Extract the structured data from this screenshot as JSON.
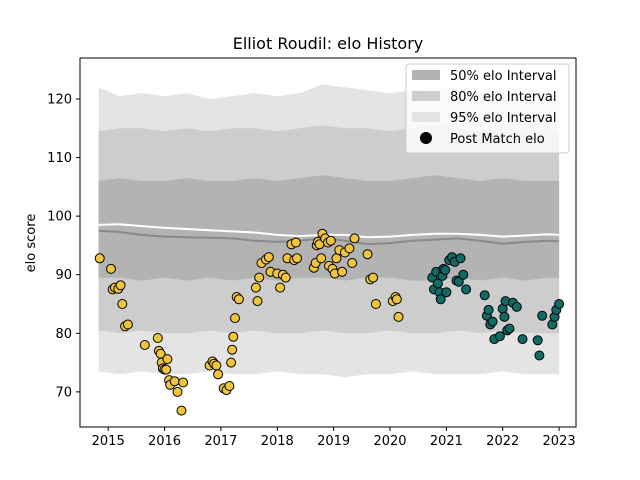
{
  "chart_data": {
    "type": "scatter",
    "title": "Elliot Roudil: elo History",
    "xlabel": "",
    "ylabel": "elo score",
    "xlim": [
      2014.5,
      2023.3
    ],
    "ylim": [
      64,
      127
    ],
    "x_ticks": [
      2015,
      2016,
      2017,
      2018,
      2019,
      2020,
      2021,
      2022,
      2023
    ],
    "y_ticks": [
      70,
      80,
      90,
      100,
      110,
      120
    ],
    "grid": false,
    "legend": {
      "placement": "top-right",
      "entries": [
        "50% elo Interval",
        "80% elo Interval",
        "95% elo Interval",
        "Post Match elo"
      ]
    },
    "colors": {
      "band_95": "#e4e4e4",
      "band_80": "#cdcdcd",
      "band_50": "#b3b3b3",
      "median_line": "#8a8a8a",
      "mean_line": "#ffffff",
      "point_yellow": "#f0c53c",
      "point_teal": "#0f6b66",
      "point_edge": "#000000"
    },
    "bands": {
      "x": [
        2014.83,
        2015.2,
        2015.6,
        2016.0,
        2016.4,
        2016.8,
        2017.2,
        2017.6,
        2018.0,
        2018.4,
        2018.8,
        2019.2,
        2019.6,
        2020.0,
        2020.4,
        2020.8,
        2021.2,
        2021.6,
        2022.0,
        2022.4,
        2022.8,
        2023.0
      ],
      "p95_upper": [
        122.0,
        120.5,
        121.0,
        120.5,
        121.0,
        120.0,
        120.5,
        121.0,
        120.5,
        121.0,
        122.5,
        122.0,
        121.5,
        121.0,
        121.5,
        122.0,
        122.0,
        121.0,
        121.5,
        120.5,
        121.0,
        120.5
      ],
      "p80_upper": [
        114.5,
        115.0,
        115.0,
        114.5,
        115.0,
        114.5,
        115.0,
        115.0,
        114.5,
        115.0,
        115.5,
        115.0,
        115.0,
        114.5,
        115.0,
        115.5,
        115.0,
        114.5,
        115.0,
        114.5,
        115.0,
        114.5
      ],
      "p50_upper": [
        106.0,
        106.5,
        106.0,
        106.0,
        106.5,
        106.0,
        106.0,
        106.5,
        106.0,
        106.5,
        107.0,
        106.5,
        106.0,
        106.0,
        106.5,
        107.0,
        106.5,
        106.0,
        106.5,
        106.0,
        106.0,
        106.0
      ],
      "p50_lower": [
        89.5,
        89.5,
        89.0,
        89.5,
        89.0,
        89.5,
        89.0,
        89.5,
        89.0,
        89.5,
        89.5,
        89.0,
        89.5,
        89.5,
        89.0,
        89.0,
        89.5,
        89.0,
        89.5,
        89.0,
        89.5,
        89.5
      ],
      "p80_lower": [
        80.5,
        80.0,
        80.5,
        80.0,
        80.0,
        80.5,
        80.0,
        80.5,
        80.0,
        80.0,
        80.5,
        80.0,
        80.0,
        80.5,
        80.0,
        80.0,
        80.5,
        80.0,
        80.5,
        80.0,
        80.0,
        80.0
      ],
      "p95_lower": [
        73.5,
        73.0,
        73.5,
        73.0,
        73.0,
        73.5,
        73.0,
        73.0,
        73.5,
        73.0,
        73.0,
        72.5,
        73.0,
        73.0,
        73.5,
        73.0,
        73.0,
        73.0,
        73.5,
        73.0,
        73.0,
        73.0
      ],
      "median": [
        97.5,
        97.3,
        96.8,
        96.5,
        96.4,
        96.3,
        96.2,
        95.8,
        95.6,
        95.8,
        96.2,
        95.8,
        95.2,
        95.4,
        95.8,
        96.0,
        96.2,
        95.8,
        95.3,
        95.6,
        95.8,
        95.7
      ],
      "mean": [
        98.5,
        98.6,
        98.3,
        98.0,
        97.8,
        97.6,
        97.4,
        97.2,
        96.8,
        96.6,
        96.8,
        96.8,
        96.4,
        96.5,
        96.8,
        97.0,
        97.0,
        96.8,
        96.5,
        96.7,
        96.9,
        96.8
      ]
    },
    "points_yellow": [
      [
        2014.85,
        92.8
      ],
      [
        2015.05,
        91.0
      ],
      [
        2015.08,
        87.5
      ],
      [
        2015.12,
        87.8
      ],
      [
        2015.18,
        87.6
      ],
      [
        2015.22,
        88.2
      ],
      [
        2015.25,
        85.0
      ],
      [
        2015.3,
        81.2
      ],
      [
        2015.35,
        81.5
      ],
      [
        2015.65,
        78.0
      ],
      [
        2015.88,
        79.2
      ],
      [
        2015.9,
        77.0
      ],
      [
        2015.93,
        76.5
      ],
      [
        2015.95,
        75.0
      ],
      [
        2015.97,
        74.0
      ],
      [
        2016.0,
        73.8
      ],
      [
        2016.03,
        73.8
      ],
      [
        2016.05,
        75.6
      ],
      [
        2016.08,
        72.0
      ],
      [
        2016.1,
        71.2
      ],
      [
        2016.18,
        71.8
      ],
      [
        2016.23,
        70.0
      ],
      [
        2016.3,
        66.8
      ],
      [
        2016.33,
        71.6
      ],
      [
        2016.8,
        74.5
      ],
      [
        2016.85,
        75.2
      ],
      [
        2016.88,
        74.8
      ],
      [
        2016.92,
        74.5
      ],
      [
        2016.95,
        73.0
      ],
      [
        2017.05,
        70.6
      ],
      [
        2017.1,
        70.3
      ],
      [
        2017.15,
        71.0
      ],
      [
        2017.18,
        75.0
      ],
      [
        2017.2,
        77.2
      ],
      [
        2017.22,
        79.4
      ],
      [
        2017.25,
        82.6
      ],
      [
        2017.28,
        86.2
      ],
      [
        2017.32,
        85.8
      ],
      [
        2017.62,
        87.8
      ],
      [
        2017.65,
        85.5
      ],
      [
        2017.68,
        89.5
      ],
      [
        2017.72,
        92.0
      ],
      [
        2017.8,
        92.6
      ],
      [
        2017.85,
        93.0
      ],
      [
        2017.88,
        90.5
      ],
      [
        2018.0,
        90.2
      ],
      [
        2018.05,
        87.8
      ],
      [
        2018.1,
        90.0
      ],
      [
        2018.15,
        89.5
      ],
      [
        2018.18,
        92.8
      ],
      [
        2018.25,
        95.2
      ],
      [
        2018.3,
        92.5
      ],
      [
        2018.33,
        95.5
      ],
      [
        2018.35,
        92.8
      ],
      [
        2018.65,
        91.2
      ],
      [
        2018.68,
        92.0
      ],
      [
        2018.7,
        95.0
      ],
      [
        2018.72,
        95.6
      ],
      [
        2018.75,
        95.2
      ],
      [
        2018.78,
        92.8
      ],
      [
        2018.8,
        97.0
      ],
      [
        2018.85,
        96.2
      ],
      [
        2018.9,
        95.5
      ],
      [
        2018.92,
        91.5
      ],
      [
        2018.95,
        95.8
      ],
      [
        2018.98,
        91.0
      ],
      [
        2019.02,
        90.2
      ],
      [
        2019.05,
        92.8
      ],
      [
        2019.1,
        94.2
      ],
      [
        2019.15,
        90.5
      ],
      [
        2019.2,
        93.8
      ],
      [
        2019.28,
        94.5
      ],
      [
        2019.33,
        92.0
      ],
      [
        2019.37,
        96.2
      ],
      [
        2019.6,
        93.5
      ],
      [
        2019.65,
        89.2
      ],
      [
        2019.7,
        89.5
      ],
      [
        2019.75,
        85.0
      ],
      [
        2020.05,
        85.5
      ],
      [
        2020.1,
        86.2
      ],
      [
        2020.12,
        85.8
      ],
      [
        2020.15,
        82.8
      ]
    ],
    "points_teal": [
      [
        2020.75,
        89.5
      ],
      [
        2020.78,
        87.5
      ],
      [
        2020.82,
        90.5
      ],
      [
        2020.85,
        88.5
      ],
      [
        2020.88,
        87.0
      ],
      [
        2020.9,
        85.8
      ],
      [
        2020.93,
        89.8
      ],
      [
        2020.95,
        91.0
      ],
      [
        2020.98,
        90.8
      ],
      [
        2021.0,
        87.0
      ],
      [
        2021.05,
        92.5
      ],
      [
        2021.1,
        93.0
      ],
      [
        2021.15,
        92.2
      ],
      [
        2021.18,
        89.0
      ],
      [
        2021.22,
        88.8
      ],
      [
        2021.25,
        92.8
      ],
      [
        2021.3,
        90.0
      ],
      [
        2021.35,
        87.5
      ],
      [
        2021.68,
        86.5
      ],
      [
        2021.72,
        83.0
      ],
      [
        2021.75,
        84.0
      ],
      [
        2021.78,
        81.5
      ],
      [
        2021.82,
        82.0
      ],
      [
        2021.85,
        79.0
      ],
      [
        2021.95,
        79.5
      ],
      [
        2022.0,
        84.2
      ],
      [
        2022.03,
        82.8
      ],
      [
        2022.05,
        85.5
      ],
      [
        2022.08,
        80.5
      ],
      [
        2022.12,
        80.8
      ],
      [
        2022.18,
        85.2
      ],
      [
        2022.25,
        84.5
      ],
      [
        2022.35,
        79.0
      ],
      [
        2022.62,
        78.8
      ],
      [
        2022.65,
        76.2
      ],
      [
        2022.7,
        83.0
      ],
      [
        2022.88,
        81.5
      ],
      [
        2022.92,
        82.8
      ],
      [
        2022.95,
        84.0
      ],
      [
        2023.0,
        85.0
      ]
    ]
  }
}
